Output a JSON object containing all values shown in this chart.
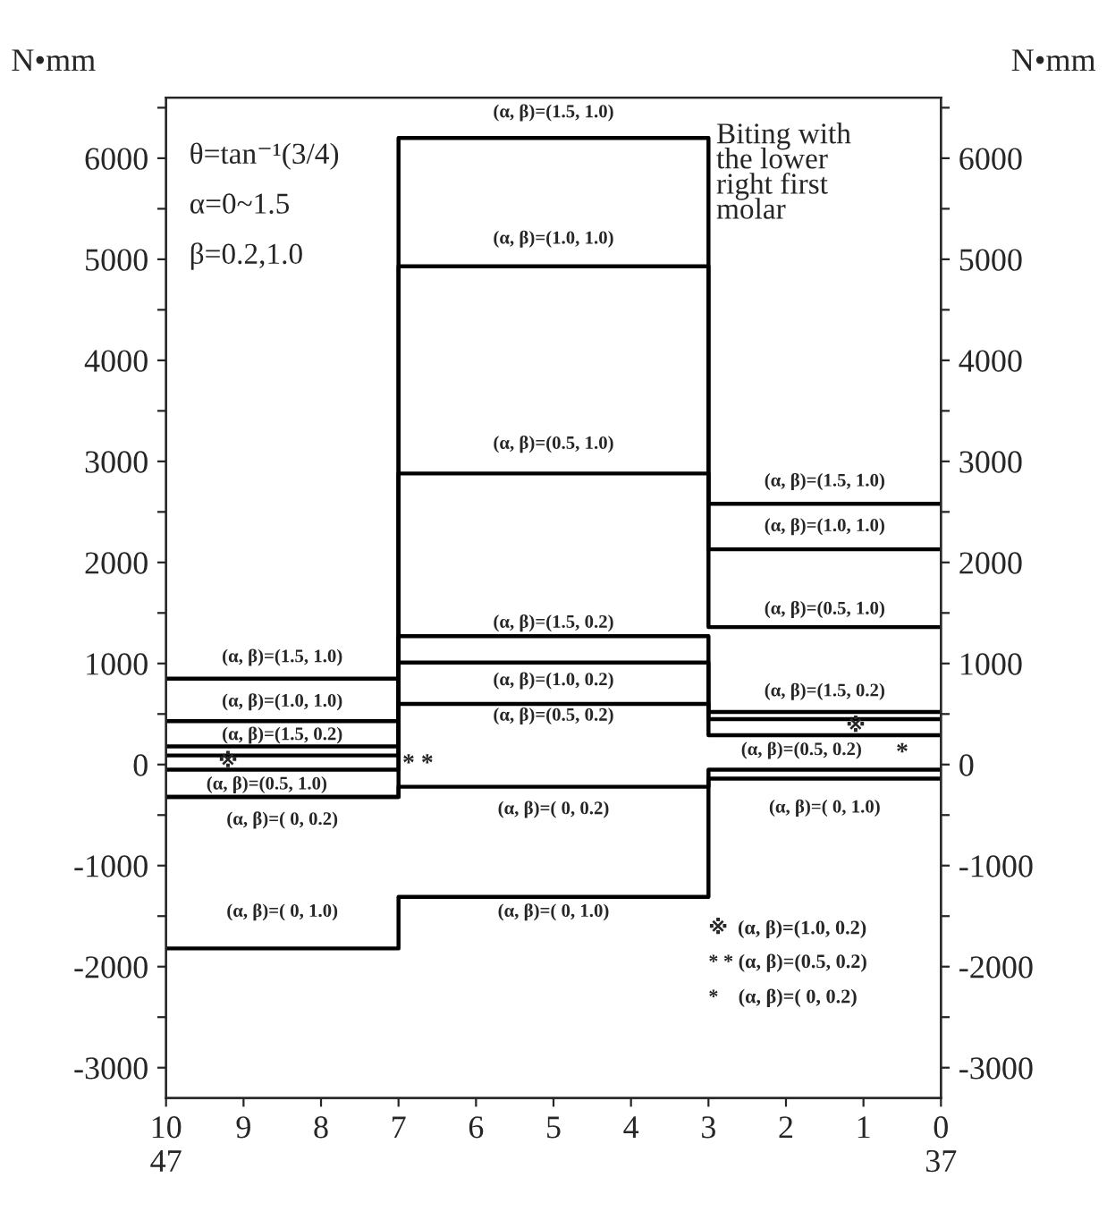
{
  "chart_data": {
    "type": "line",
    "ylabel": "N•mm",
    "y2label": "N•mm",
    "line_style": "solid",
    "xlim": [
      10,
      0
    ],
    "xticks": [
      {
        "value": 10,
        "label": "10\n47"
      },
      9,
      8,
      7,
      6,
      5,
      4,
      3,
      2,
      1,
      {
        "value": 0,
        "label": "0\n37"
      }
    ],
    "ylim": [
      -3300,
      6600
    ],
    "yticks": [
      -3000,
      {
        "value": -2500,
        "label": null
      },
      -2000,
      {
        "value": -1500,
        "label": null
      },
      -1000,
      {
        "value": -500,
        "label": null
      },
      0,
      {
        "value": 500,
        "label": null
      },
      1000,
      {
        "value": 1500,
        "label": null
      },
      2000,
      {
        "value": 2500,
        "label": null
      },
      3000,
      {
        "value": 3500,
        "label": null
      },
      4000,
      {
        "value": 4500,
        "label": null
      },
      5000,
      {
        "value": 5500,
        "label": null
      },
      6000,
      {
        "value": 6500,
        "label": null
      }
    ],
    "y2lim": [
      -3300,
      6600
    ],
    "y2ticks": [
      -3000,
      {
        "value": -2500,
        "label": null
      },
      -2000,
      {
        "value": -1500,
        "label": null
      },
      -1000,
      {
        "value": -500,
        "label": null
      },
      0,
      {
        "value": 500,
        "label": null
      },
      1000,
      {
        "value": 1500,
        "label": null
      },
      2000,
      {
        "value": 2500,
        "label": null
      },
      3000,
      {
        "value": 3500,
        "label": null
      },
      4000,
      {
        "value": 4500,
        "label": null
      },
      5000,
      {
        "value": 5500,
        "label": null
      },
      6000,
      {
        "value": 6500,
        "label": null
      }
    ],
    "series": [
      {
        "color": "#000000",
        "x": [
          10,
          7,
          7,
          3,
          3,
          0
        ],
        "values": [
          850,
          850,
          6200,
          6200,
          2580,
          2580
        ]
      },
      {
        "color": "#000000",
        "x": [
          10,
          7,
          7,
          3,
          3,
          0
        ],
        "values": [
          430,
          430,
          4930,
          4930,
          2130,
          2130
        ]
      },
      {
        "color": "#000000",
        "x": [
          10,
          7,
          7,
          3,
          3,
          0
        ],
        "values": [
          -320,
          -320,
          2880,
          2880,
          1360,
          1360
        ]
      },
      {
        "color": "#000000",
        "x": [
          10,
          7,
          7,
          3,
          3,
          0
        ],
        "values": [
          -1820,
          -1820,
          -1310,
          -1310,
          -140,
          -140
        ]
      },
      {
        "color": "#000000",
        "x": [
          10,
          7,
          7,
          3,
          3,
          0
        ],
        "values": [
          180,
          180,
          1270,
          1270,
          520,
          520
        ]
      },
      {
        "color": "#000000",
        "x": [
          10,
          7,
          7,
          3,
          3,
          0
        ],
        "values": [
          90,
          90,
          1010,
          1010,
          450,
          450
        ]
      },
      {
        "color": "#000000",
        "x": [
          10,
          7,
          7,
          3,
          3,
          0
        ],
        "values": [
          -50,
          -50,
          600,
          600,
          290,
          290
        ]
      },
      {
        "color": "#000000",
        "x": [
          10,
          7,
          7,
          3,
          3,
          0
        ],
        "values": [
          -320,
          -320,
          -220,
          -220,
          -50,
          -50
        ]
      }
    ],
    "annotations": [
      "θ=tan⁻¹(3/4)",
      "α=0~1.5",
      "β=0.2,1.0",
      "Biting with\nthe lower\nright first\nmolar",
      "※  (α, β)=(1.0, 0.2)",
      "* * (α, β)=(0.5, 0.2)",
      "*    (α, β)=( 0, 0.2)",
      "(α, β)=(1.5, 1.0)",
      "(α, β)=(1.0, 1.0)",
      "(α, β)=(1.5, 0.2)",
      "※",
      "(α, β)=(0.5, 1.0)",
      "* *",
      "(α, β)=( 0, 0.2)",
      "(α, β)=( 0, 1.0)",
      "(α, β)=(1.5, 1.0)",
      "(α, β)=(1.0, 1.0)",
      "(α, β)=(0.5, 1.0)",
      "(α, β)=(1.5, 0.2)",
      "(α, β)=(1.0, 0.2)",
      "(α, β)=(0.5, 0.2)",
      "(α, β)=( 0, 0.2)",
      "(α, β)=( 0, 1.0)",
      "(α, β)=(1.5, 1.0)",
      "(α, β)=(1.0, 1.0)",
      "(α, β)=(0.5, 1.0)",
      "(α, β)=(1.5, 0.2)",
      "※",
      "(α, β)=(0.5, 0.2)",
      "*",
      "(α, β)=( 0, 1.0)"
    ]
  }
}
